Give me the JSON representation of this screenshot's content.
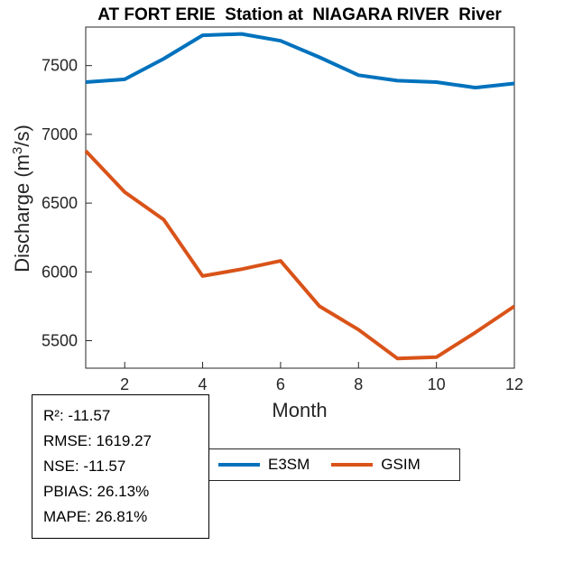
{
  "chart_data": {
    "type": "line",
    "title": "AT FORT ERIE  Station at  NIAGARA RIVER  River",
    "xlabel": "Month",
    "ylabel": "Discharge (m³/s)",
    "ylabel_parts": {
      "pre": "Discharge (m",
      "sup": "3",
      "post": "/s)"
    },
    "x": [
      1,
      2,
      3,
      4,
      5,
      6,
      7,
      8,
      9,
      10,
      11,
      12
    ],
    "xlim": [
      1,
      12
    ],
    "ylim": [
      5300,
      7780
    ],
    "xticks": [
      2,
      4,
      6,
      8,
      10,
      12
    ],
    "yticks": [
      5500,
      6000,
      6500,
      7000,
      7500
    ],
    "grid": false,
    "legend_position": "below-horizontal",
    "series": [
      {
        "name": "E3SM",
        "color": "#0072BD",
        "values": [
          7380,
          7400,
          7550,
          7720,
          7730,
          7680,
          7560,
          7430,
          7390,
          7380,
          7340,
          7370
        ]
      },
      {
        "name": "GSIM",
        "color": "#D95319",
        "values": [
          6880,
          6580,
          6380,
          5970,
          6020,
          6080,
          5750,
          5580,
          5370,
          5380,
          5560,
          5750
        ]
      }
    ]
  },
  "legend": {
    "items": [
      {
        "label": "E3SM",
        "color": "#0072BD"
      },
      {
        "label": "GSIM",
        "color": "#D95319"
      }
    ]
  },
  "stats_box": {
    "lines": [
      "R²: -11.57",
      "RMSE: 1619.27",
      "NSE: -11.57",
      "PBIAS: 26.13%",
      "MAPE: 26.81%"
    ]
  }
}
